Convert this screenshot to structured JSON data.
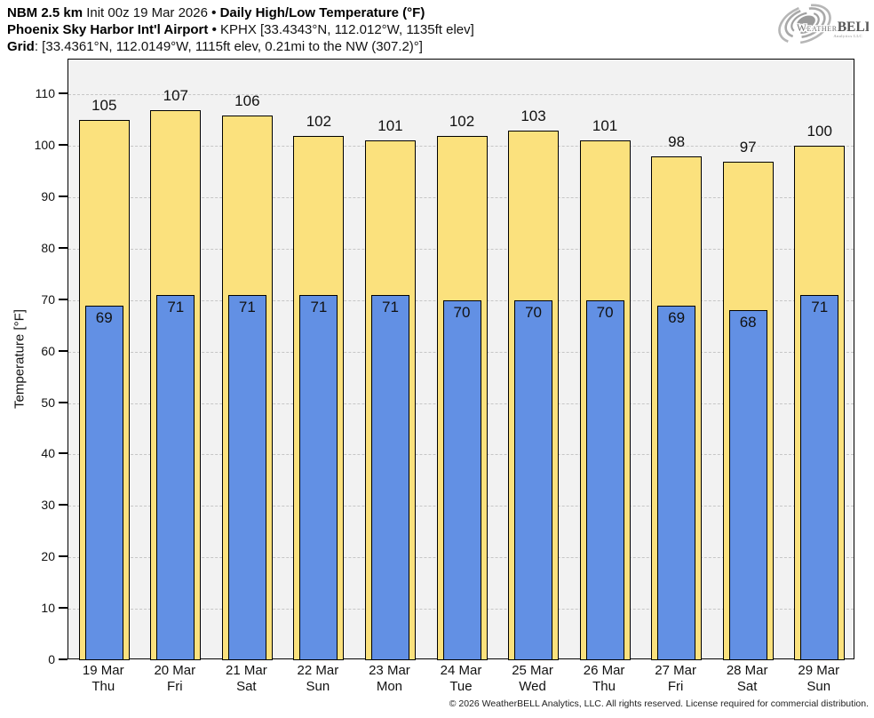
{
  "header": {
    "line1": {
      "model": "NBM 2.5 km",
      "init": "Init 00z 19 Mar 2026",
      "separator": "•",
      "title": "Daily High/Low Temperature (°F)"
    },
    "line2": {
      "station": "Phoenix Sky Harbor Int'l Airport",
      "separator": "•",
      "location": "KPHX [33.4343°N, 112.012°W, 1135ft elev]"
    },
    "line3": {
      "label": "Grid",
      "details": ": [33.4361°N, 112.0149°W, 1115ft elev, 0.21mi to the NW (307.2)°]"
    }
  },
  "logo": {
    "brand_weather": "Weather",
    "brand_bell": "BELL",
    "subtitle": "Analytics LLC"
  },
  "chart_data": {
    "type": "bar",
    "title": "Daily High/Low Temperature (°F)",
    "ylabel": "Temperature [°F]",
    "ylim": [
      0,
      116.8
    ],
    "ytick_step": 10,
    "ytick_max": 110,
    "grid": "horizontal-dash-dot",
    "legend_position": "none",
    "categories": [
      "19 Mar",
      "20 Mar",
      "21 Mar",
      "22 Mar",
      "23 Mar",
      "24 Mar",
      "25 Mar",
      "26 Mar",
      "27 Mar",
      "28 Mar",
      "29 Mar"
    ],
    "weekdays": [
      "Thu",
      "Fri",
      "Sat",
      "Sun",
      "Mon",
      "Tue",
      "Wed",
      "Thu",
      "Fri",
      "Sat",
      "Sun"
    ],
    "series": [
      {
        "name": "Daily High",
        "color": "#fbe17d",
        "values": [
          105,
          107,
          106,
          102,
          101,
          102,
          103,
          101,
          98,
          97,
          100
        ]
      },
      {
        "name": "Daily Low",
        "color": "#6290e4",
        "values": [
          69,
          71,
          71,
          71,
          71,
          70,
          70,
          70,
          69,
          68,
          71
        ]
      }
    ],
    "colors": {
      "plot_background": "#f2f2f2",
      "bar_border": "#000000",
      "gridline": "#c6c6c6"
    }
  },
  "footer": {
    "copyright": "© 2026 WeatherBELL Analytics, LLC. All rights reserved. License required for commercial distribution."
  }
}
